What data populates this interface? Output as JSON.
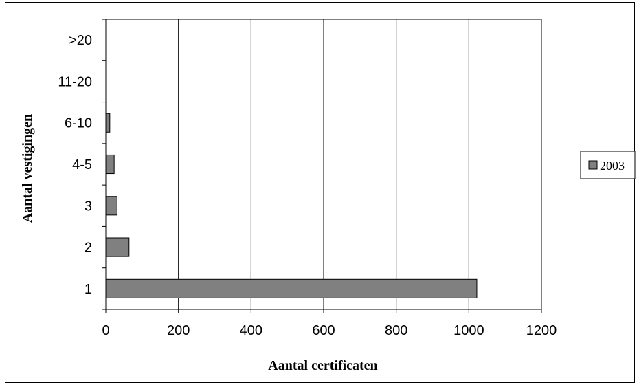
{
  "chart_data": {
    "type": "bar",
    "orientation": "horizontal",
    "categories": [
      "1",
      "2",
      "3",
      "4-5",
      "6-10",
      "11-20",
      ">20"
    ],
    "series": [
      {
        "name": "2003",
        "values": [
          1022,
          64,
          31,
          23,
          11,
          0,
          0
        ]
      }
    ],
    "xlabel": "Aantal certificaten",
    "ylabel": "Aantal vestigingen",
    "xlim": [
      0,
      1200
    ],
    "xticks": [
      0,
      200,
      400,
      600,
      800,
      1000,
      1200
    ],
    "grid": "vertical",
    "legend_position": "right",
    "colors": {
      "bar": "#808080",
      "bar_stroke": "#000000",
      "grid": "#000000"
    }
  }
}
